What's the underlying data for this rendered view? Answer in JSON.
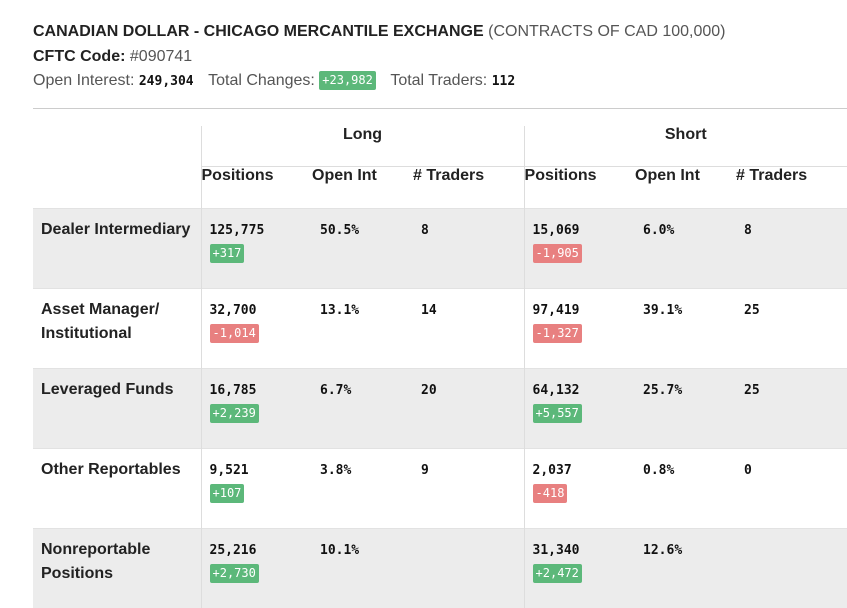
{
  "header": {
    "title": "CANADIAN DOLLAR - CHICAGO MERCANTILE EXCHANGE",
    "subtitle": "(CONTRACTS OF CAD 100,000)",
    "cftc_label": "CFTC Code:",
    "cftc_code": "#090741",
    "open_interest_label": "Open Interest:",
    "open_interest": "249,304",
    "total_changes_label": "Total Changes:",
    "total_changes": "+23,982",
    "total_traders_label": "Total Traders:",
    "total_traders": "112"
  },
  "table": {
    "group_long": "Long",
    "group_short": "Short",
    "col_positions": "Positions",
    "col_open_int": "Open Int",
    "col_traders": "# Traders",
    "rows": [
      {
        "label": "Dealer Intermediary",
        "long": {
          "positions": "125,775",
          "change": "+317",
          "open_int": "50.5%",
          "traders": "8"
        },
        "short": {
          "positions": "15,069",
          "change": "-1,905",
          "open_int": "6.0%",
          "traders": "8"
        }
      },
      {
        "label": "Asset Manager/ Institutional",
        "long": {
          "positions": "32,700",
          "change": "-1,014",
          "open_int": "13.1%",
          "traders": "14"
        },
        "short": {
          "positions": "97,419",
          "change": "-1,327",
          "open_int": "39.1%",
          "traders": "25"
        }
      },
      {
        "label": "Leveraged Funds",
        "long": {
          "positions": "16,785",
          "change": "+2,239",
          "open_int": "6.7%",
          "traders": "20"
        },
        "short": {
          "positions": "64,132",
          "change": "+5,557",
          "open_int": "25.7%",
          "traders": "25"
        }
      },
      {
        "label": "Other Reportables",
        "long": {
          "positions": "9,521",
          "change": "+107",
          "open_int": "3.8%",
          "traders": "9"
        },
        "short": {
          "positions": "2,037",
          "change": "-418",
          "open_int": "0.8%",
          "traders": "0"
        }
      },
      {
        "label": "Nonreportable Positions",
        "long": {
          "positions": "25,216",
          "change": "+2,730",
          "open_int": "10.1%",
          "traders": ""
        },
        "short": {
          "positions": "31,340",
          "change": "+2,472",
          "open_int": "12.6%",
          "traders": ""
        }
      }
    ]
  },
  "colors": {
    "positive_badge": "#5cb87a",
    "negative_badge": "#e88080",
    "row_shade": "#ececec"
  }
}
